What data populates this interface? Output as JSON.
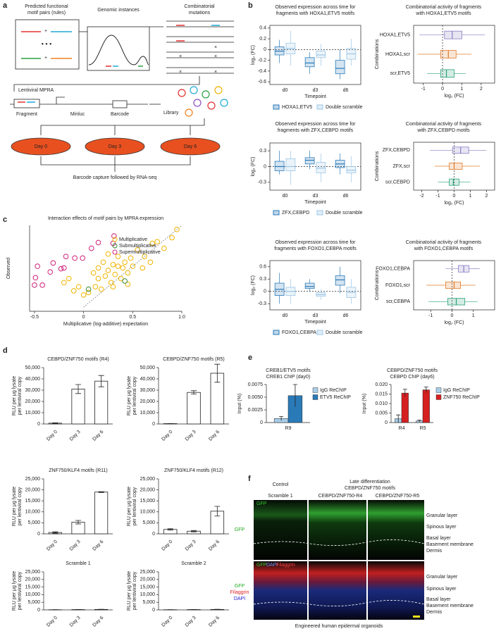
{
  "panel_labels": [
    "a",
    "b",
    "c",
    "d",
    "e",
    "f"
  ],
  "panel_a": {
    "column_titles": [
      [
        "Predicted functional",
        "motif pairs (rules)"
      ],
      [
        "Genomic instances"
      ],
      [
        "Combinatorial",
        "mutations"
      ]
    ],
    "mpra": "Lentiviral MPRA",
    "construct": [
      "Fragment",
      "Minluc",
      "Barcode"
    ],
    "library": "Library",
    "days": [
      "Day 0",
      "Day 3",
      "Day 6"
    ],
    "readout": "Barcode capture followed by RNA-seq"
  },
  "chart_data": [
    {
      "type": "box",
      "title": [
        "Observed expression across time for",
        "fragments with HOXA1,ETV5 motifs"
      ],
      "xlabel": "Timepoint",
      "ylabel": "log₂ (FC)",
      "categories": [
        "d0",
        "d3",
        "d6"
      ],
      "ylim": [
        -0.65,
        0.45
      ],
      "yticks": [
        -0.6,
        -0.4,
        -0.2,
        0,
        0.2,
        0.4
      ],
      "hline": 0,
      "series": [
        {
          "name": "HOXA1,ETV5",
          "color": "#2a7ab8",
          "values": [
            {
              "min": -0.25,
              "q1": -0.1,
              "median": -0.03,
              "q3": 0.05,
              "max": 0.18
            },
            {
              "min": -0.45,
              "q1": -0.32,
              "median": -0.25,
              "q3": -0.15,
              "max": -0.05
            },
            {
              "min": -0.55,
              "q1": -0.45,
              "median": -0.35,
              "q3": -0.2,
              "max": 0
            }
          ]
        },
        {
          "name": "Double scramble",
          "color": "#9cc6e6",
          "values": [
            {
              "min": -0.3,
              "q1": -0.08,
              "median": 0.02,
              "q3": 0.12,
              "max": 0.35
            },
            {
              "min": -0.3,
              "q1": -0.15,
              "median": -0.1,
              "q3": -0.03,
              "max": 0.1
            },
            {
              "min": -0.3,
              "q1": -0.18,
              "median": -0.08,
              "q3": 0.02,
              "max": 0.2
            }
          ]
        }
      ]
    },
    {
      "type": "hbox",
      "title": [
        "Combinatorial activity of fragments",
        "with HOXA1,ETV5 motifs"
      ],
      "xlabel": "log₂ (FC)",
      "ylabel": "Combinations",
      "categories": [
        "HOXA1,ETV5",
        "HOXA1,scr",
        "scr,ETV5"
      ],
      "colors": [
        "#8a7cc4",
        "#e07b2a",
        "#2aa07a"
      ],
      "xlim": [
        -1.5,
        2.7
      ],
      "xticks": [
        -1,
        0,
        1,
        2
      ],
      "vline": 0,
      "values": [
        {
          "min": -1.2,
          "q1": 0.1,
          "median": 0.5,
          "q3": 1.0,
          "max": 2.2
        },
        {
          "min": -1.3,
          "q1": -0.1,
          "median": 0.3,
          "q3": 0.7,
          "max": 1.5
        },
        {
          "min": -0.8,
          "q1": -0.1,
          "median": 0.2,
          "q3": 0.6,
          "max": 1.2
        }
      ]
    },
    {
      "type": "box",
      "title": [
        "Observed expression across time for",
        "fragments with ZFX,CEBPD motifs"
      ],
      "xlabel": "Timepoint",
      "ylabel": "log₂ (FC)",
      "categories": [
        "d0",
        "d3",
        "d6"
      ],
      "ylim": [
        -0.45,
        0.45
      ],
      "yticks": [
        -0.3,
        0,
        0.3
      ],
      "hline": 0,
      "series": [
        {
          "name": "ZFX,CEBPD",
          "color": "#2a7ab8",
          "values": [
            {
              "min": -0.15,
              "q1": -0.08,
              "median": 0,
              "q3": 0.1,
              "max": 0.3
            },
            {
              "min": -0.05,
              "q1": 0.05,
              "median": 0.12,
              "q3": 0.17,
              "max": 0.3
            },
            {
              "min": -0.15,
              "q1": -0.02,
              "median": 0.05,
              "q3": 0.12,
              "max": 0.25
            }
          ]
        },
        {
          "name": "Double scramble",
          "color": "#9cc6e6",
          "values": [
            {
              "min": -0.35,
              "q1": -0.08,
              "median": 0,
              "q3": 0.15,
              "max": 0.3
            },
            {
              "min": -0.3,
              "q1": -0.12,
              "median": -0.03,
              "q3": 0.08,
              "max": 0.25
            },
            {
              "min": -0.3,
              "q1": -0.12,
              "median": -0.07,
              "q3": 0,
              "max": 0.2
            }
          ]
        }
      ]
    },
    {
      "type": "hbox",
      "title": [
        "Combinatorial activity of fragments",
        "with ZFX,CEBPD motifs"
      ],
      "xlabel": "log₂ (FC)",
      "ylabel": "Combinations",
      "categories": [
        "ZFX,CEBPD",
        "ZFX,scr",
        "scr,CEBPD"
      ],
      "colors": [
        "#8a7cc4",
        "#e07b2a",
        "#2aa07a"
      ],
      "xlim": [
        -2.5,
        2.5
      ],
      "xticks": [
        -2,
        -1,
        0,
        1,
        2
      ],
      "vline": 0,
      "values": [
        {
          "min": -1.5,
          "q1": -0.1,
          "median": 0.4,
          "q3": 0.9,
          "max": 2.0
        },
        {
          "min": -1.2,
          "q1": -0.3,
          "median": 0,
          "q3": 0.5,
          "max": 1.6
        },
        {
          "min": -1,
          "q1": -0.3,
          "median": -0.05,
          "q3": 0.3,
          "max": 1.0
        }
      ]
    },
    {
      "type": "box",
      "title": [
        "Observed expression across time for",
        "fragments with FOXO1,CEBPA motifs"
      ],
      "xlabel": "Timepoint",
      "ylabel": "log₂ (FC)",
      "categories": [
        "d0",
        "d3",
        "d6"
      ],
      "ylim": [
        -0.45,
        0.75
      ],
      "yticks": [
        -0.3,
        0,
        0.3,
        0.6
      ],
      "hline": 0,
      "series": [
        {
          "name": "FOXO1,CEBPA",
          "color": "#2a7ab8",
          "values": [
            {
              "min": -0.3,
              "q1": -0.1,
              "median": 0.05,
              "q3": 0.2,
              "max": 0.45
            },
            {
              "min": 0,
              "q1": 0.07,
              "median": 0.12,
              "q3": 0.2,
              "max": 0.3
            },
            {
              "min": -0.05,
              "q1": 0.15,
              "median": 0.28,
              "q3": 0.38,
              "max": 0.6
            }
          ]
        },
        {
          "name": "Double scramble",
          "color": "#9cc6e6",
          "values": [
            {
              "min": -0.3,
              "q1": -0.1,
              "median": 0,
              "q3": 0.1,
              "max": 0.3
            },
            {
              "min": -0.2,
              "q1": -0.12,
              "median": -0.08,
              "q3": -0.03,
              "max": 0.05
            },
            {
              "min": -0.3,
              "q1": -0.15,
              "median": -0.02,
              "q3": 0.1,
              "max": 0.3
            }
          ]
        }
      ]
    },
    {
      "type": "hbox",
      "title": [
        "Combinatorial activity of fragments",
        "with FOXO1,CEBPA motifs"
      ],
      "xlabel": "log₂ (FC)",
      "ylabel": "Combinations",
      "categories": [
        "FOXO1,CEBPA",
        "FOXO1,scr",
        "scr,CEBPA"
      ],
      "colors": [
        "#8a7cc4",
        "#e07b2a",
        "#2aa07a"
      ],
      "xlim": [
        -1.8,
        2
      ],
      "xticks": [
        -1,
        0,
        1
      ],
      "vline": 0,
      "values": [
        {
          "min": -0.3,
          "q1": 0.3,
          "median": 0.55,
          "q3": 0.8,
          "max": 1.3
        },
        {
          "min": -1.2,
          "q1": -0.3,
          "median": 0.1,
          "q3": 0.4,
          "max": 1.1
        },
        {
          "min": -1.1,
          "q1": -0.2,
          "median": 0.2,
          "q3": 0.6,
          "max": 1.2
        }
      ]
    },
    {
      "type": "scatter",
      "title": "Interaction effects of motif pairs by MPRA expression",
      "xlabel": "Multiplicative (log-additive) expectation",
      "ylabel": "Observed",
      "xlim": [
        -0.55,
        1.0
      ],
      "ylim": [
        -0.05,
        1.0
      ],
      "xticks": [
        -0.5,
        0,
        0.5,
        {
          "value": 1,
          "label": "1.0"
        }
      ],
      "diagonal": true,
      "legend": "upper right",
      "series": [
        {
          "name": "Multiplicative",
          "color": "#f0b400",
          "x": [
            0.95,
            0.9,
            0.82,
            0.75,
            0.7,
            0.68,
            0.62,
            0.55,
            0.5,
            0.48,
            0.45,
            0.42,
            0.4,
            0.38,
            0.35,
            0.32,
            0.3,
            0.28,
            0.25,
            0.22,
            0.2,
            0.18,
            0.15,
            0.12,
            0.1,
            0.05,
            0.0,
            -0.05,
            -0.1,
            -0.15,
            -0.2,
            0.3,
            0.45,
            0.6,
            0.35,
            0.15,
            0.25
          ],
          "values": [
            0.95,
            0.85,
            0.72,
            0.8,
            0.78,
            0.55,
            0.62,
            0.7,
            0.5,
            0.6,
            0.42,
            0.55,
            0.48,
            0.35,
            0.62,
            0.4,
            0.52,
            0.3,
            0.45,
            0.38,
            0.55,
            0.22,
            0.35,
            0.25,
            0.42,
            0.18,
            0.15,
            0.25,
            0.2,
            0.35,
            0.3,
            0.25,
            0.28,
            0.48,
            0.5,
            0.48,
            0.65
          ]
        },
        {
          "name": "Submultiplicative",
          "color": "#3a8a3a",
          "x": [
            0.05,
            0.42
          ],
          "values": [
            0.22,
            0.32
          ]
        },
        {
          "name": "Supermultiplicative",
          "color": "#d0207a",
          "x": [
            -0.47,
            -0.49,
            -0.31,
            -0.34,
            -0.23,
            -0.2,
            -0.18,
            -0.09,
            0.08,
            0.15,
            0.3,
            0.31,
            -0.01,
            -0.42,
            -0.5
          ],
          "values": [
            0.5,
            0.36,
            0.54,
            0.43,
            0.47,
            0.48,
            0.62,
            0.6,
            0.72,
            0.79,
            0.78,
            0.87,
            0.6,
            0.27,
            0.27
          ]
        }
      ]
    },
    {
      "type": "bar",
      "title": "CEBPD/ZNF750 motifs (R4)",
      "ylabel": [
        "RLU per μg lysate",
        "per lentiviral copy"
      ],
      "categories": [
        "Day 0",
        "Day 3",
        "Day 6"
      ],
      "values": [
        700,
        31000,
        38000
      ],
      "errors": [
        300,
        4000,
        5000
      ],
      "ylim": [
        0,
        50000
      ],
      "yticks": [
        0,
        {
          "value": 10000,
          "label": "10,000"
        },
        {
          "value": 20000,
          "label": "20,000"
        },
        {
          "value": 30000,
          "label": "30,000"
        },
        {
          "value": 40000,
          "label": "40,000"
        },
        {
          "value": 50000,
          "label": "50,000"
        }
      ]
    },
    {
      "type": "bar",
      "title": "CEBPD/ZNF750 motifs (R5)",
      "ylabel": [
        "RLU per μg lysate",
        "per lentiviral copy"
      ],
      "categories": [
        "Day 0",
        "Day 3",
        "Day 6"
      ],
      "values": [
        300,
        28000,
        45000
      ],
      "errors": [
        100,
        1500,
        8000
      ],
      "ylim": [
        0,
        50000
      ],
      "yticks": [
        0,
        {
          "value": 10000,
          "label": "10,000"
        },
        {
          "value": 20000,
          "label": "20,000"
        },
        {
          "value": 30000,
          "label": "30,000"
        },
        {
          "value": 40000,
          "label": "40,000"
        },
        {
          "value": 50000,
          "label": "50,000"
        }
      ]
    },
    {
      "type": "bar",
      "title": "ZNF750/KLF4 motifs (R11)",
      "ylabel": [
        "RLU per μg lysate",
        "per lentiviral copy"
      ],
      "categories": [
        "Day 0",
        "Day 3",
        "Day 6"
      ],
      "values": [
        600,
        5300,
        19000
      ],
      "errors": [
        300,
        800,
        200
      ],
      "ylim": [
        0,
        25000
      ],
      "yticks": [
        0,
        {
          "value": 5000,
          "label": "5,000"
        },
        {
          "value": 10000,
          "label": "10,000"
        },
        {
          "value": 15000,
          "label": "15,000"
        },
        {
          "value": 20000,
          "label": "20,000"
        },
        {
          "value": 25000,
          "label": "25,000"
        }
      ]
    },
    {
      "type": "bar",
      "title": "ZNF750/KLF4 motifs (R12)",
      "ylabel": [
        "RLU per μg lysate",
        "per lentiviral copy"
      ],
      "categories": [
        "Day 0",
        "Day 3",
        "Day 6"
      ],
      "values": [
        2000,
        1200,
        10300
      ],
      "errors": [
        300,
        300,
        2200
      ],
      "ylim": [
        0,
        25000
      ],
      "yticks": [
        0,
        {
          "value": 5000,
          "label": "5,000"
        },
        {
          "value": 10000,
          "label": "10,000"
        },
        {
          "value": 15000,
          "label": "15,000"
        },
        {
          "value": 20000,
          "label": "20,000"
        },
        {
          "value": 25000,
          "label": "25,000"
        }
      ]
    },
    {
      "type": "bar",
      "title": "Scramble 1",
      "ylabel": [
        "RLU per μg lysate",
        "per lentiviral copy"
      ],
      "categories": [
        "Day 0",
        "Day 3",
        "Day 6"
      ],
      "values": [
        100,
        200,
        300
      ],
      "errors": [
        50,
        80,
        100
      ],
      "ylim": [
        0,
        25000
      ],
      "yticks": [
        0,
        {
          "value": 5000,
          "label": "5,000"
        },
        {
          "value": 10000,
          "label": "10,000"
        },
        {
          "value": 15000,
          "label": "15,000"
        },
        {
          "value": 20000,
          "label": "20,000"
        },
        {
          "value": 25000,
          "label": "25,000"
        }
      ]
    },
    {
      "type": "bar",
      "title": "Scramble 2",
      "ylabel": [
        "RLU per μg lysate",
        "per lentiviral copy"
      ],
      "categories": [
        "Day 0",
        "Day 3",
        "Day 6"
      ],
      "values": [
        100,
        200,
        300
      ],
      "errors": [
        50,
        80,
        100
      ],
      "ylim": [
        0,
        25000
      ],
      "yticks": [
        0,
        {
          "value": 5000,
          "label": "5,000"
        },
        {
          "value": 10000,
          "label": "10,000"
        },
        {
          "value": 15000,
          "label": "15,000"
        },
        {
          "value": 20000,
          "label": "20,000"
        },
        {
          "value": 25000,
          "label": "25,000"
        }
      ]
    },
    {
      "type": "groupbar",
      "title": [
        "CREB1/ETV5 motifs",
        "CREB1 ChIP (day0)"
      ],
      "ylabel": "Input (%)",
      "categories": [
        "R9"
      ],
      "ylim": [
        0,
        0.0075
      ],
      "yticks": [
        0,
        0.0025,
        {
          "value": 0.005,
          "label": "0.0050"
        },
        0.0075
      ],
      "series": [
        {
          "name": "IgG ReChIP",
          "color": "#a8cde8",
          "values": [
            0.0008
          ],
          "errors": [
            0.0004
          ]
        },
        {
          "name": "ETV5 ReChIP",
          "color": "#2a7ab8",
          "values": [
            0.0053
          ],
          "errors": [
            0.0022
          ]
        }
      ]
    },
    {
      "type": "groupbar",
      "title": [
        "CEBPD/ZNF750 motifs",
        "CEBPD ChIP (day6)"
      ],
      "ylabel": "Input (%)",
      "categories": [
        "R4",
        "R5"
      ],
      "ylim": [
        0,
        0.02
      ],
      "yticks": [
        0,
        0.005,
        {
          "value": 0.01,
          "label": "0.010"
        },
        0.015,
        {
          "value": 0.02,
          "label": "0.020"
        }
      ],
      "series": [
        {
          "name": "IgG ReChIP",
          "color": "#a8cde8",
          "values": [
            0.002,
            0.0008
          ],
          "errors": [
            0.002,
            0.0005
          ]
        },
        {
          "name": "ZNF750 ReChIP",
          "color": "#d62020",
          "values": [
            0.0155,
            0.0172
          ],
          "errors": [
            0.002,
            0.0015
          ]
        }
      ]
    }
  ],
  "panel_f": {
    "group_titles": [
      "Control",
      "Late differentiation",
      "CEBPD/ZNF750 motifs"
    ],
    "columns": [
      "Scramble 1",
      "CEBPD/ZNF750-R4",
      "CEBPD/ZNF750-R5"
    ],
    "row1_label": "GFP",
    "row1_inset": "GFP",
    "row2_labels": [
      "GFP",
      "Filaggrin",
      "DAPI"
    ],
    "row2_inset": [
      "GFP",
      "DAPI",
      "Filaggrin"
    ],
    "layers": [
      "Granular layer",
      "Spinous layer",
      "Basal layer",
      "Basement membrane",
      "Dermis"
    ],
    "caption": "Engineered human epidermal organoids"
  }
}
